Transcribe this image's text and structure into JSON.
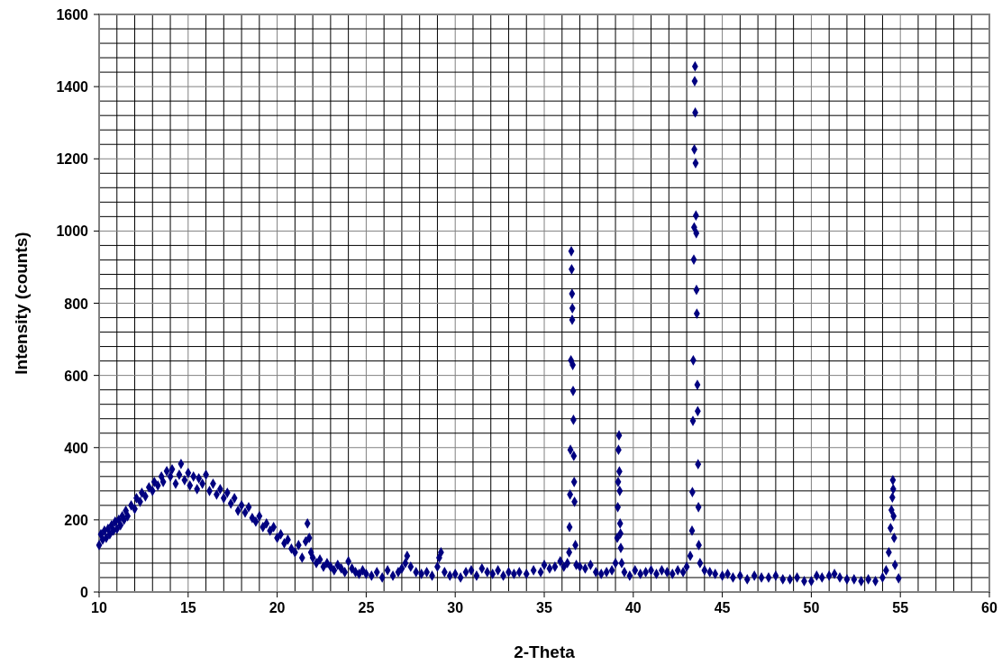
{
  "chart_data": {
    "type": "scatter",
    "xlabel": "2-Theta",
    "ylabel": "Intensity (counts)",
    "xlim": [
      10,
      60
    ],
    "xticks": [
      10,
      15,
      20,
      25,
      30,
      35,
      40,
      45,
      50,
      55,
      60
    ],
    "ylim": [
      0,
      1600
    ],
    "yticks": [
      0,
      200,
      400,
      600,
      800,
      1000,
      1200,
      1400,
      1600
    ],
    "grid": true,
    "marker": "diamond",
    "series": [
      {
        "color": "#000080",
        "x": [
          10,
          10.1,
          10.2,
          10.3,
          10.4,
          10.5,
          10.6,
          10.7,
          10.8,
          10.9,
          11,
          11.1,
          11.2,
          11.3,
          11.4,
          11.5,
          11.6,
          11.8,
          12,
          12.1,
          12.3,
          12.4,
          12.6,
          12.8,
          13,
          13.1,
          13.3,
          13.5,
          13.6,
          13.8,
          14,
          14.1,
          14.3,
          14.5,
          14.6,
          14.8,
          15,
          15.1,
          15.3,
          15.5,
          15.6,
          15.8,
          16,
          16.2,
          16.4,
          16.6,
          16.8,
          17,
          17.2,
          17.4,
          17.6,
          17.8,
          18,
          18.2,
          18.4,
          18.6,
          18.8,
          19,
          19.2,
          19.4,
          19.6,
          19.8,
          20,
          20.2,
          20.4,
          20.6,
          20.8,
          21,
          21.2,
          21.4,
          21.6,
          21.7,
          21.8,
          21.9,
          22,
          22.2,
          22.4,
          22.6,
          22.8,
          23,
          23.2,
          23.4,
          23.6,
          23.8,
          24,
          24.2,
          24.4,
          24.6,
          24.8,
          25,
          25.3,
          25.6,
          25.9,
          26.2,
          26.5,
          26.8,
          27,
          27.2,
          27.3,
          27.5,
          27.8,
          28.1,
          28.4,
          28.7,
          29,
          29.1,
          29.2,
          29.4,
          29.7,
          30,
          30.3,
          30.6,
          30.9,
          31.2,
          31.5,
          31.8,
          32.1,
          32.4,
          32.7,
          33,
          33.3,
          33.6,
          34,
          34.4,
          34.8,
          35,
          35.3,
          35.6,
          35.9,
          36.1,
          36.3,
          36.4,
          36.42,
          36.45,
          36.47,
          36.5,
          36.52,
          36.54,
          36.56,
          36.57,
          36.58,
          36.6,
          36.62,
          36.64,
          36.66,
          36.68,
          36.7,
          36.75,
          36.8,
          37,
          37.3,
          37.6,
          37.9,
          38.2,
          38.5,
          38.8,
          39,
          39.1,
          39.13,
          39.15,
          39.17,
          39.2,
          39.22,
          39.24,
          39.26,
          39.28,
          39.3,
          39.35,
          39.5,
          39.8,
          40.1,
          40.4,
          40.7,
          41,
          41.3,
          41.6,
          41.9,
          42.2,
          42.5,
          42.8,
          43,
          43.2,
          43.3,
          43.32,
          43.35,
          43.37,
          43.4,
          43.42,
          43.43,
          43.45,
          43.47,
          43.48,
          43.5,
          43.52,
          43.54,
          43.55,
          43.57,
          43.6,
          43.62,
          43.64,
          43.66,
          43.68,
          43.75,
          44,
          44.3,
          44.6,
          45,
          45.3,
          45.6,
          46,
          46.4,
          46.8,
          47.2,
          47.6,
          48,
          48.4,
          48.8,
          49.2,
          49.6,
          50,
          50.3,
          50.6,
          51,
          51.3,
          51.6,
          52,
          52.4,
          52.8,
          53.2,
          53.6,
          54,
          54.2,
          54.35,
          54.45,
          54.5,
          54.55,
          54.58,
          54.6,
          54.62,
          54.65,
          54.7,
          54.9
        ],
        "values": [
          130,
          160,
          145,
          170,
          150,
          175,
          160,
          185,
          170,
          195,
          175,
          200,
          185,
          210,
          200,
          225,
          210,
          240,
          230,
          260,
          250,
          275,
          265,
          290,
          280,
          305,
          295,
          320,
          305,
          335,
          320,
          340,
          300,
          325,
          355,
          310,
          330,
          295,
          320,
          285,
          315,
          300,
          325,
          280,
          300,
          270,
          285,
          260,
          275,
          245,
          260,
          225,
          240,
          220,
          235,
          205,
          195,
          210,
          180,
          190,
          170,
          180,
          150,
          160,
          135,
          145,
          120,
          110,
          130,
          95,
          140,
          190,
          150,
          110,
          95,
          80,
          90,
          70,
          80,
          70,
          60,
          75,
          65,
          55,
          85,
          65,
          55,
          50,
          60,
          50,
          45,
          55,
          40,
          60,
          45,
          55,
          65,
          80,
          100,
          70,
          55,
          50,
          55,
          45,
          70,
          95,
          110,
          55,
          45,
          50,
          40,
          55,
          60,
          45,
          65,
          55,
          50,
          60,
          45,
          55,
          50,
          55,
          50,
          60,
          55,
          75,
          65,
          70,
          85,
          70,
          80,
          110,
          180,
          270,
          394,
          642,
          944,
          894,
          826,
          754,
          786,
          629,
          557,
          477,
          377,
          305,
          250,
          130,
          75,
          70,
          65,
          75,
          55,
          50,
          55,
          60,
          80,
          150,
          235,
          305,
          394,
          434,
          334,
          280,
          190,
          162,
          122,
          80,
          55,
          45,
          60,
          50,
          55,
          60,
          50,
          60,
          55,
          50,
          60,
          55,
          70,
          100,
          170,
          277,
          474,
          642,
          921,
          1010,
          1226,
          1415,
          1456,
          1328,
          1188,
          1043,
          994,
          837,
          771,
          574,
          501,
          354,
          235,
          130,
          80,
          60,
          55,
          50,
          45,
          50,
          40,
          45,
          35,
          45,
          40,
          40,
          45,
          35,
          35,
          40,
          30,
          30,
          45,
          40,
          45,
          50,
          40,
          35,
          35,
          30,
          35,
          30,
          40,
          60,
          110,
          177,
          227,
          262,
          310,
          285,
          210,
          150,
          75,
          38
        ]
      }
    ]
  }
}
